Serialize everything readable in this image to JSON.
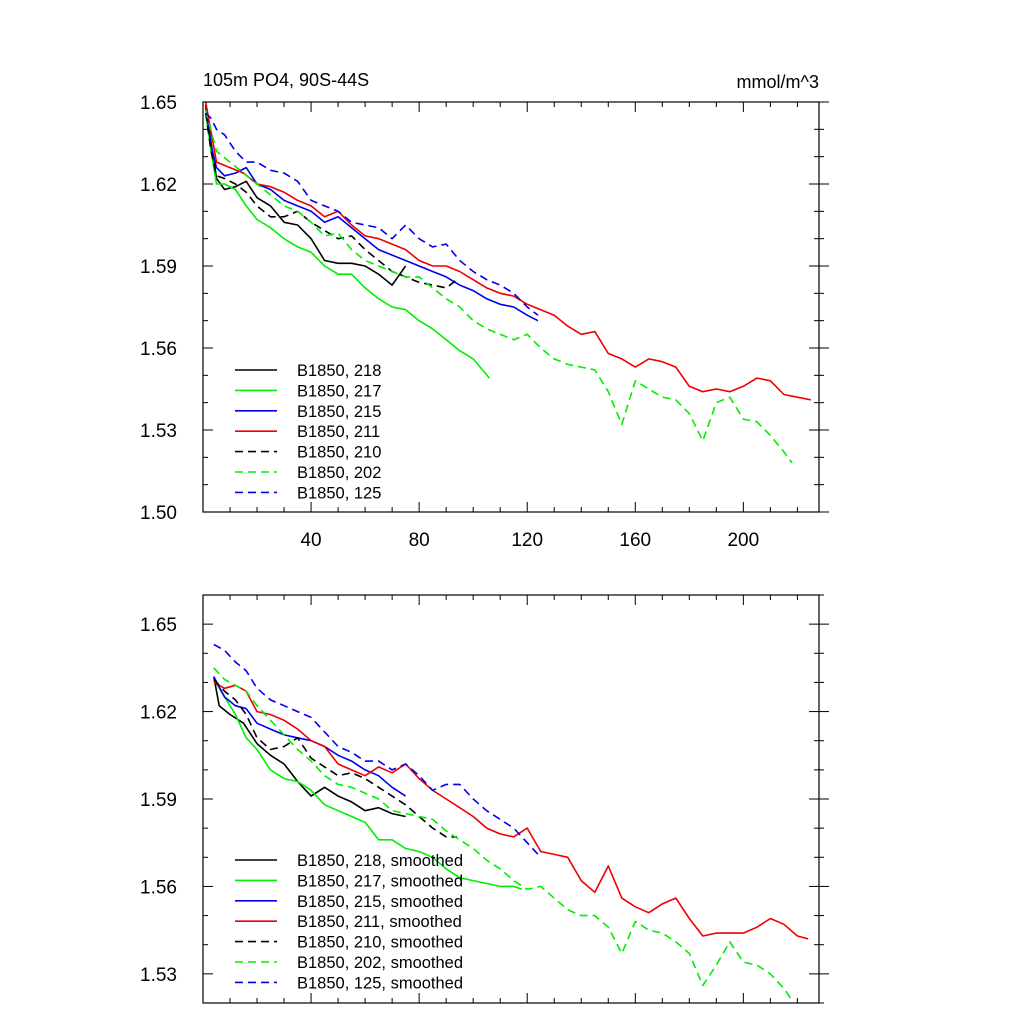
{
  "chart_data": [
    {
      "type": "line",
      "title": "105m PO4, 90S-44S",
      "units": "mmol/m^3",
      "xlim": [
        0,
        228
      ],
      "ylim": [
        1.5,
        1.65
      ],
      "xticks": [
        40,
        80,
        120,
        160,
        200
      ],
      "xtick_labels": [
        "40",
        "80",
        "120",
        "160",
        "200"
      ],
      "yticks": [
        1.5,
        1.53,
        1.56,
        1.59,
        1.62,
        1.65
      ],
      "ytick_labels": [
        "1.50",
        "1.53",
        "1.56",
        "1.59",
        "1.62",
        "1.65"
      ],
      "legend_position": "bottom-left",
      "series": [
        {
          "name": "B1850, 218",
          "color": "#000000",
          "dash": "solid",
          "x": [
            1,
            3,
            5,
            8,
            12,
            16,
            20,
            25,
            30,
            35,
            40,
            45,
            50,
            55,
            60,
            65,
            70,
            75
          ],
          "y": [
            1.649,
            1.635,
            1.622,
            1.618,
            1.619,
            1.621,
            1.615,
            1.612,
            1.606,
            1.605,
            1.6,
            1.592,
            1.591,
            1.591,
            1.59,
            1.587,
            1.583,
            1.59
          ]
        },
        {
          "name": "B1850, 217",
          "color": "#00ee00",
          "dash": "solid",
          "x": [
            1,
            3,
            5,
            8,
            12,
            16,
            20,
            25,
            30,
            35,
            40,
            45,
            50,
            55,
            60,
            65,
            70,
            75,
            80,
            85,
            90,
            95,
            100,
            106
          ],
          "y": [
            1.646,
            1.632,
            1.62,
            1.62,
            1.618,
            1.612,
            1.607,
            1.604,
            1.6,
            1.597,
            1.595,
            1.59,
            1.587,
            1.587,
            1.582,
            1.578,
            1.575,
            1.574,
            1.57,
            1.567,
            1.563,
            1.559,
            1.556,
            1.549
          ]
        },
        {
          "name": "B1850, 215",
          "color": "#0000ee",
          "dash": "solid",
          "x": [
            1,
            3,
            5,
            8,
            12,
            16,
            20,
            25,
            30,
            35,
            40,
            45,
            50,
            55,
            60,
            65,
            70,
            75,
            80,
            85,
            90,
            95,
            100,
            105,
            110,
            115,
            120,
            124
          ],
          "y": [
            1.648,
            1.634,
            1.626,
            1.623,
            1.624,
            1.626,
            1.62,
            1.618,
            1.614,
            1.612,
            1.61,
            1.606,
            1.608,
            1.604,
            1.6,
            1.596,
            1.594,
            1.592,
            1.59,
            1.588,
            1.586,
            1.583,
            1.581,
            1.578,
            1.576,
            1.575,
            1.572,
            1.57
          ]
        },
        {
          "name": "B1850, 211",
          "color": "#ee0000",
          "dash": "solid",
          "x": [
            1,
            5,
            10,
            15,
            20,
            25,
            30,
            35,
            40,
            45,
            50,
            55,
            60,
            65,
            70,
            75,
            80,
            85,
            90,
            95,
            100,
            105,
            110,
            115,
            120,
            125,
            130,
            135,
            140,
            145,
            150,
            155,
            160,
            165,
            170,
            175,
            180,
            185,
            190,
            195,
            200,
            205,
            210,
            215,
            220,
            225
          ],
          "y": [
            1.65,
            1.628,
            1.626,
            1.624,
            1.62,
            1.619,
            1.617,
            1.614,
            1.612,
            1.608,
            1.61,
            1.605,
            1.601,
            1.6,
            1.598,
            1.596,
            1.592,
            1.59,
            1.59,
            1.588,
            1.585,
            1.582,
            1.58,
            1.579,
            1.576,
            1.574,
            1.572,
            1.568,
            1.565,
            1.566,
            1.558,
            1.556,
            1.553,
            1.556,
            1.555,
            1.553,
            1.546,
            1.544,
            1.545,
            1.544,
            1.546,
            1.549,
            1.548,
            1.543,
            1.542,
            1.541
          ]
        },
        {
          "name": "B1850, 210",
          "color": "#000000",
          "dash": "dashed",
          "x": [
            1,
            3,
            5,
            8,
            12,
            16,
            20,
            25,
            30,
            35,
            40,
            45,
            50,
            55,
            60,
            65,
            70,
            75,
            80,
            85,
            90,
            94
          ],
          "y": [
            1.646,
            1.632,
            1.623,
            1.622,
            1.62,
            1.617,
            1.612,
            1.608,
            1.608,
            1.61,
            1.606,
            1.603,
            1.6,
            1.601,
            1.596,
            1.592,
            1.588,
            1.586,
            1.584,
            1.583,
            1.582,
            1.585
          ]
        },
        {
          "name": "B1850, 202",
          "color": "#00ee00",
          "dash": "dashed",
          "x": [
            1,
            5,
            10,
            15,
            20,
            25,
            30,
            35,
            40,
            45,
            50,
            55,
            60,
            65,
            70,
            75,
            80,
            85,
            90,
            95,
            100,
            105,
            110,
            115,
            120,
            125,
            130,
            135,
            140,
            145,
            150,
            155,
            160,
            165,
            170,
            175,
            180,
            185,
            190,
            195,
            200,
            205,
            210,
            215,
            218
          ],
          "y": [
            1.647,
            1.632,
            1.628,
            1.624,
            1.62,
            1.616,
            1.612,
            1.61,
            1.606,
            1.601,
            1.602,
            1.596,
            1.592,
            1.59,
            1.588,
            1.586,
            1.586,
            1.582,
            1.578,
            1.575,
            1.57,
            1.567,
            1.565,
            1.563,
            1.565,
            1.56,
            1.556,
            1.554,
            1.553,
            1.552,
            1.544,
            1.532,
            1.548,
            1.545,
            1.542,
            1.541,
            1.536,
            1.526,
            1.54,
            1.542,
            1.534,
            1.533,
            1.528,
            1.522,
            1.518
          ]
        },
        {
          "name": "B1850, 125",
          "color": "#0000ee",
          "dash": "dashed",
          "x": [
            1,
            3,
            5,
            8,
            12,
            16,
            20,
            25,
            30,
            35,
            40,
            45,
            50,
            55,
            60,
            65,
            70,
            75,
            80,
            85,
            90,
            95,
            100,
            105,
            110,
            115,
            120,
            124
          ],
          "y": [
            1.646,
            1.644,
            1.64,
            1.638,
            1.632,
            1.628,
            1.628,
            1.625,
            1.624,
            1.621,
            1.614,
            1.612,
            1.61,
            1.606,
            1.605,
            1.604,
            1.6,
            1.605,
            1.6,
            1.597,
            1.598,
            1.592,
            1.588,
            1.585,
            1.583,
            1.58,
            1.575,
            1.572
          ]
        }
      ]
    },
    {
      "type": "line",
      "xlim": [
        0,
        228
      ],
      "ylim": [
        1.52,
        1.66
      ],
      "xticks": [
        40,
        80,
        120,
        160,
        200
      ],
      "yticks": [
        1.53,
        1.56,
        1.59,
        1.62,
        1.65
      ],
      "ytick_labels": [
        "1.53",
        "1.56",
        "1.59",
        "1.62",
        "1.65"
      ],
      "legend_position": "bottom-left",
      "series": [
        {
          "name": "B1850, 218, smoothed",
          "color": "#000000",
          "dash": "solid",
          "x": [
            4,
            6,
            10,
            15,
            20,
            25,
            30,
            35,
            40,
            45,
            50,
            55,
            60,
            65,
            70,
            75
          ],
          "y": [
            1.632,
            1.622,
            1.619,
            1.616,
            1.609,
            1.605,
            1.602,
            1.596,
            1.591,
            1.594,
            1.591,
            1.589,
            1.586,
            1.587,
            1.585,
            1.584
          ]
        },
        {
          "name": "B1850, 217, smoothed",
          "color": "#00ee00",
          "dash": "solid",
          "x": [
            4,
            8,
            12,
            16,
            20,
            25,
            30,
            35,
            40,
            45,
            50,
            55,
            60,
            65,
            70,
            75,
            80,
            85,
            90,
            95,
            100,
            105,
            110,
            115,
            118
          ],
          "y": [
            1.631,
            1.625,
            1.619,
            1.611,
            1.607,
            1.6,
            1.597,
            1.596,
            1.593,
            1.588,
            1.586,
            1.584,
            1.582,
            1.576,
            1.576,
            1.573,
            1.572,
            1.57,
            1.566,
            1.563,
            1.562,
            1.561,
            1.56,
            1.56,
            1.559
          ]
        },
        {
          "name": "B1850, 215, smoothed",
          "color": "#0000ee",
          "dash": "solid",
          "x": [
            4,
            8,
            12,
            16,
            20,
            25,
            30,
            35,
            40,
            45,
            50,
            55,
            60,
            65,
            70,
            75
          ],
          "y": [
            1.632,
            1.625,
            1.622,
            1.621,
            1.616,
            1.614,
            1.612,
            1.611,
            1.61,
            1.608,
            1.605,
            1.603,
            1.6,
            1.598,
            1.594,
            1.591
          ]
        },
        {
          "name": "B1850, 211, smoothed",
          "color": "#ee0000",
          "dash": "solid",
          "x": [
            4,
            8,
            12,
            16,
            20,
            25,
            30,
            35,
            40,
            45,
            50,
            55,
            60,
            65,
            70,
            75,
            80,
            85,
            90,
            95,
            100,
            105,
            110,
            115,
            120,
            125,
            130,
            135,
            140,
            145,
            150,
            155,
            160,
            165,
            170,
            175,
            180,
            185,
            190,
            195,
            200,
            205,
            210,
            215,
            220,
            224
          ],
          "y": [
            1.63,
            1.628,
            1.629,
            1.627,
            1.62,
            1.619,
            1.617,
            1.614,
            1.61,
            1.608,
            1.602,
            1.6,
            1.598,
            1.601,
            1.599,
            1.602,
            1.597,
            1.593,
            1.59,
            1.587,
            1.584,
            1.58,
            1.578,
            1.577,
            1.58,
            1.572,
            1.571,
            1.57,
            1.562,
            1.558,
            1.567,
            1.556,
            1.553,
            1.551,
            1.554,
            1.556,
            1.549,
            1.543,
            1.544,
            1.544,
            1.544,
            1.546,
            1.549,
            1.547,
            1.543,
            1.542
          ]
        },
        {
          "name": "B1850, 210, smoothed",
          "color": "#000000",
          "dash": "dashed",
          "x": [
            4,
            8,
            12,
            16,
            20,
            25,
            30,
            35,
            40,
            45,
            50,
            55,
            60,
            65,
            70,
            75,
            80,
            85,
            90,
            94
          ],
          "y": [
            1.631,
            1.627,
            1.624,
            1.619,
            1.611,
            1.607,
            1.608,
            1.611,
            1.604,
            1.601,
            1.598,
            1.599,
            1.597,
            1.594,
            1.591,
            1.588,
            1.584,
            1.58,
            1.577,
            1.577
          ]
        },
        {
          "name": "B1850, 202, smoothed",
          "color": "#00ee00",
          "dash": "dashed",
          "x": [
            4,
            8,
            12,
            16,
            20,
            25,
            30,
            35,
            40,
            45,
            50,
            55,
            60,
            65,
            70,
            75,
            80,
            85,
            90,
            95,
            100,
            105,
            110,
            115,
            120,
            125,
            130,
            135,
            140,
            145,
            150,
            155,
            160,
            165,
            170,
            175,
            180,
            185,
            190,
            195,
            200,
            205,
            210,
            215,
            218
          ],
          "y": [
            1.635,
            1.631,
            1.629,
            1.627,
            1.622,
            1.617,
            1.612,
            1.607,
            1.603,
            1.598,
            1.595,
            1.594,
            1.592,
            1.59,
            1.586,
            1.585,
            1.584,
            1.583,
            1.579,
            1.576,
            1.573,
            1.569,
            1.566,
            1.562,
            1.559,
            1.56,
            1.556,
            1.552,
            1.55,
            1.55,
            1.546,
            1.537,
            1.548,
            1.545,
            1.544,
            1.541,
            1.537,
            1.526,
            1.533,
            1.541,
            1.534,
            1.533,
            1.53,
            1.525,
            1.521
          ]
        },
        {
          "name": "B1850, 125, smoothed",
          "color": "#0000ee",
          "dash": "dashed",
          "x": [
            4,
            8,
            12,
            16,
            20,
            25,
            30,
            35,
            40,
            45,
            50,
            55,
            60,
            65,
            70,
            75,
            80,
            85,
            90,
            95,
            100,
            105,
            110,
            115,
            120,
            124
          ],
          "y": [
            1.643,
            1.641,
            1.637,
            1.634,
            1.628,
            1.624,
            1.622,
            1.62,
            1.618,
            1.613,
            1.608,
            1.606,
            1.603,
            1.603,
            1.6,
            1.602,
            1.598,
            1.593,
            1.595,
            1.595,
            1.59,
            1.586,
            1.583,
            1.58,
            1.575,
            1.571
          ]
        }
      ]
    }
  ]
}
